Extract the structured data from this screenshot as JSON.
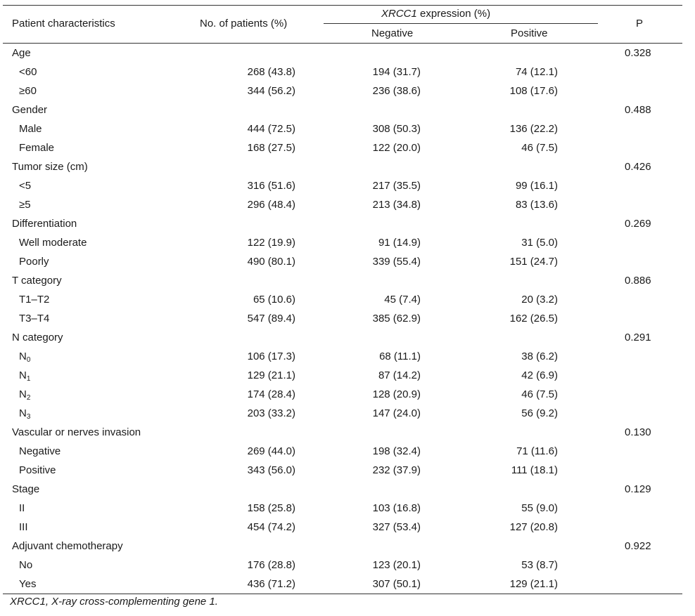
{
  "header": {
    "col_characteristics": "Patient characteristics",
    "col_patients": "No. of patients (%)",
    "col_expression_gene": "XRCC1",
    "col_expression_suffix": " expression (%)",
    "col_negative": "Negative",
    "col_positive": "Positive",
    "col_p": "P"
  },
  "rows": [
    {
      "label": "Age",
      "group": true,
      "n": "",
      "neg": "",
      "pos": "",
      "p": "0.328"
    },
    {
      "label": "<60",
      "group": false,
      "n": "268 (43.8)",
      "neg": "194 (31.7)",
      "pos": "74 (12.1)",
      "p": ""
    },
    {
      "label": "≥60",
      "group": false,
      "n": "344 (56.2)",
      "neg": "236 (38.6)",
      "pos": "108 (17.6)",
      "p": ""
    },
    {
      "label": "Gender",
      "group": true,
      "n": "",
      "neg": "",
      "pos": "",
      "p": "0.488"
    },
    {
      "label": "Male",
      "group": false,
      "n": "444 (72.5)",
      "neg": "308 (50.3)",
      "pos": "136 (22.2)",
      "p": ""
    },
    {
      "label": "Female",
      "group": false,
      "n": "168 (27.5)",
      "neg": "122 (20.0)",
      "pos": "46 (7.5)",
      "p": ""
    },
    {
      "label": "Tumor size (cm)",
      "group": true,
      "n": "",
      "neg": "",
      "pos": "",
      "p": "0.426"
    },
    {
      "label": "<5",
      "group": false,
      "n": "316 (51.6)",
      "neg": "217 (35.5)",
      "pos": "99 (16.1)",
      "p": ""
    },
    {
      "label": "≥5",
      "group": false,
      "n": "296 (48.4)",
      "neg": "213 (34.8)",
      "pos": "83 (13.6)",
      "p": ""
    },
    {
      "label": "Differentiation",
      "group": true,
      "n": "",
      "neg": "",
      "pos": "",
      "p": "0.269"
    },
    {
      "label": "Well moderate",
      "group": false,
      "n": "122 (19.9)",
      "neg": "91 (14.9)",
      "pos": "31 (5.0)",
      "p": ""
    },
    {
      "label": "Poorly",
      "group": false,
      "n": "490 (80.1)",
      "neg": "339 (55.4)",
      "pos": "151 (24.7)",
      "p": ""
    },
    {
      "label": "T category",
      "group": true,
      "n": "",
      "neg": "",
      "pos": "",
      "p": "0.886"
    },
    {
      "label": "T1–T2",
      "group": false,
      "n": "65 (10.6)",
      "neg": "45 (7.4)",
      "pos": "20 (3.2)",
      "p": ""
    },
    {
      "label": "T3–T4",
      "group": false,
      "n": "547 (89.4)",
      "neg": "385 (62.9)",
      "pos": "162 (26.5)",
      "p": ""
    },
    {
      "label": "N category",
      "group": true,
      "n": "",
      "neg": "",
      "pos": "",
      "p": "0.291"
    },
    {
      "label": "N",
      "sub": "0",
      "group": false,
      "n": "106 (17.3)",
      "neg": "68 (11.1)",
      "pos": "38 (6.2)",
      "p": ""
    },
    {
      "label": "N",
      "sub": "1",
      "group": false,
      "n": "129 (21.1)",
      "neg": "87 (14.2)",
      "pos": "42 (6.9)",
      "p": ""
    },
    {
      "label": "N",
      "sub": "2",
      "group": false,
      "n": "174 (28.4)",
      "neg": "128 (20.9)",
      "pos": "46 (7.5)",
      "p": ""
    },
    {
      "label": "N",
      "sub": "3",
      "group": false,
      "n": "203 (33.2)",
      "neg": "147 (24.0)",
      "pos": "56 (9.2)",
      "p": ""
    },
    {
      "label": "Vascular or nerves invasion",
      "group": true,
      "n": "",
      "neg": "",
      "pos": "",
      "p": "0.130"
    },
    {
      "label": "Negative",
      "group": false,
      "n": "269 (44.0)",
      "neg": "198 (32.4)",
      "pos": "71 (11.6)",
      "p": ""
    },
    {
      "label": "Positive",
      "group": false,
      "n": "343 (56.0)",
      "neg": "232 (37.9)",
      "pos": "111 (18.1)",
      "p": ""
    },
    {
      "label": "Stage",
      "group": true,
      "n": "",
      "neg": "",
      "pos": "",
      "p": "0.129"
    },
    {
      "label": "II",
      "group": false,
      "n": "158 (25.8)",
      "neg": "103 (16.8)",
      "pos": "55 (9.0)",
      "p": ""
    },
    {
      "label": "III",
      "group": false,
      "n": "454 (74.2)",
      "neg": "327 (53.4)",
      "pos": "127 (20.8)",
      "p": ""
    },
    {
      "label": "Adjuvant chemotherapy",
      "group": true,
      "n": "",
      "neg": "",
      "pos": "",
      "p": "0.922"
    },
    {
      "label": "No",
      "group": false,
      "n": "176 (28.8)",
      "neg": "123 (20.1)",
      "pos": "53 (8.7)",
      "p": ""
    },
    {
      "label": "Yes",
      "group": false,
      "n": "436 (71.2)",
      "neg": "307 (50.1)",
      "pos": "129 (21.1)",
      "p": ""
    }
  ],
  "footnote": "XRCC1, X-ray cross-complementing gene 1."
}
